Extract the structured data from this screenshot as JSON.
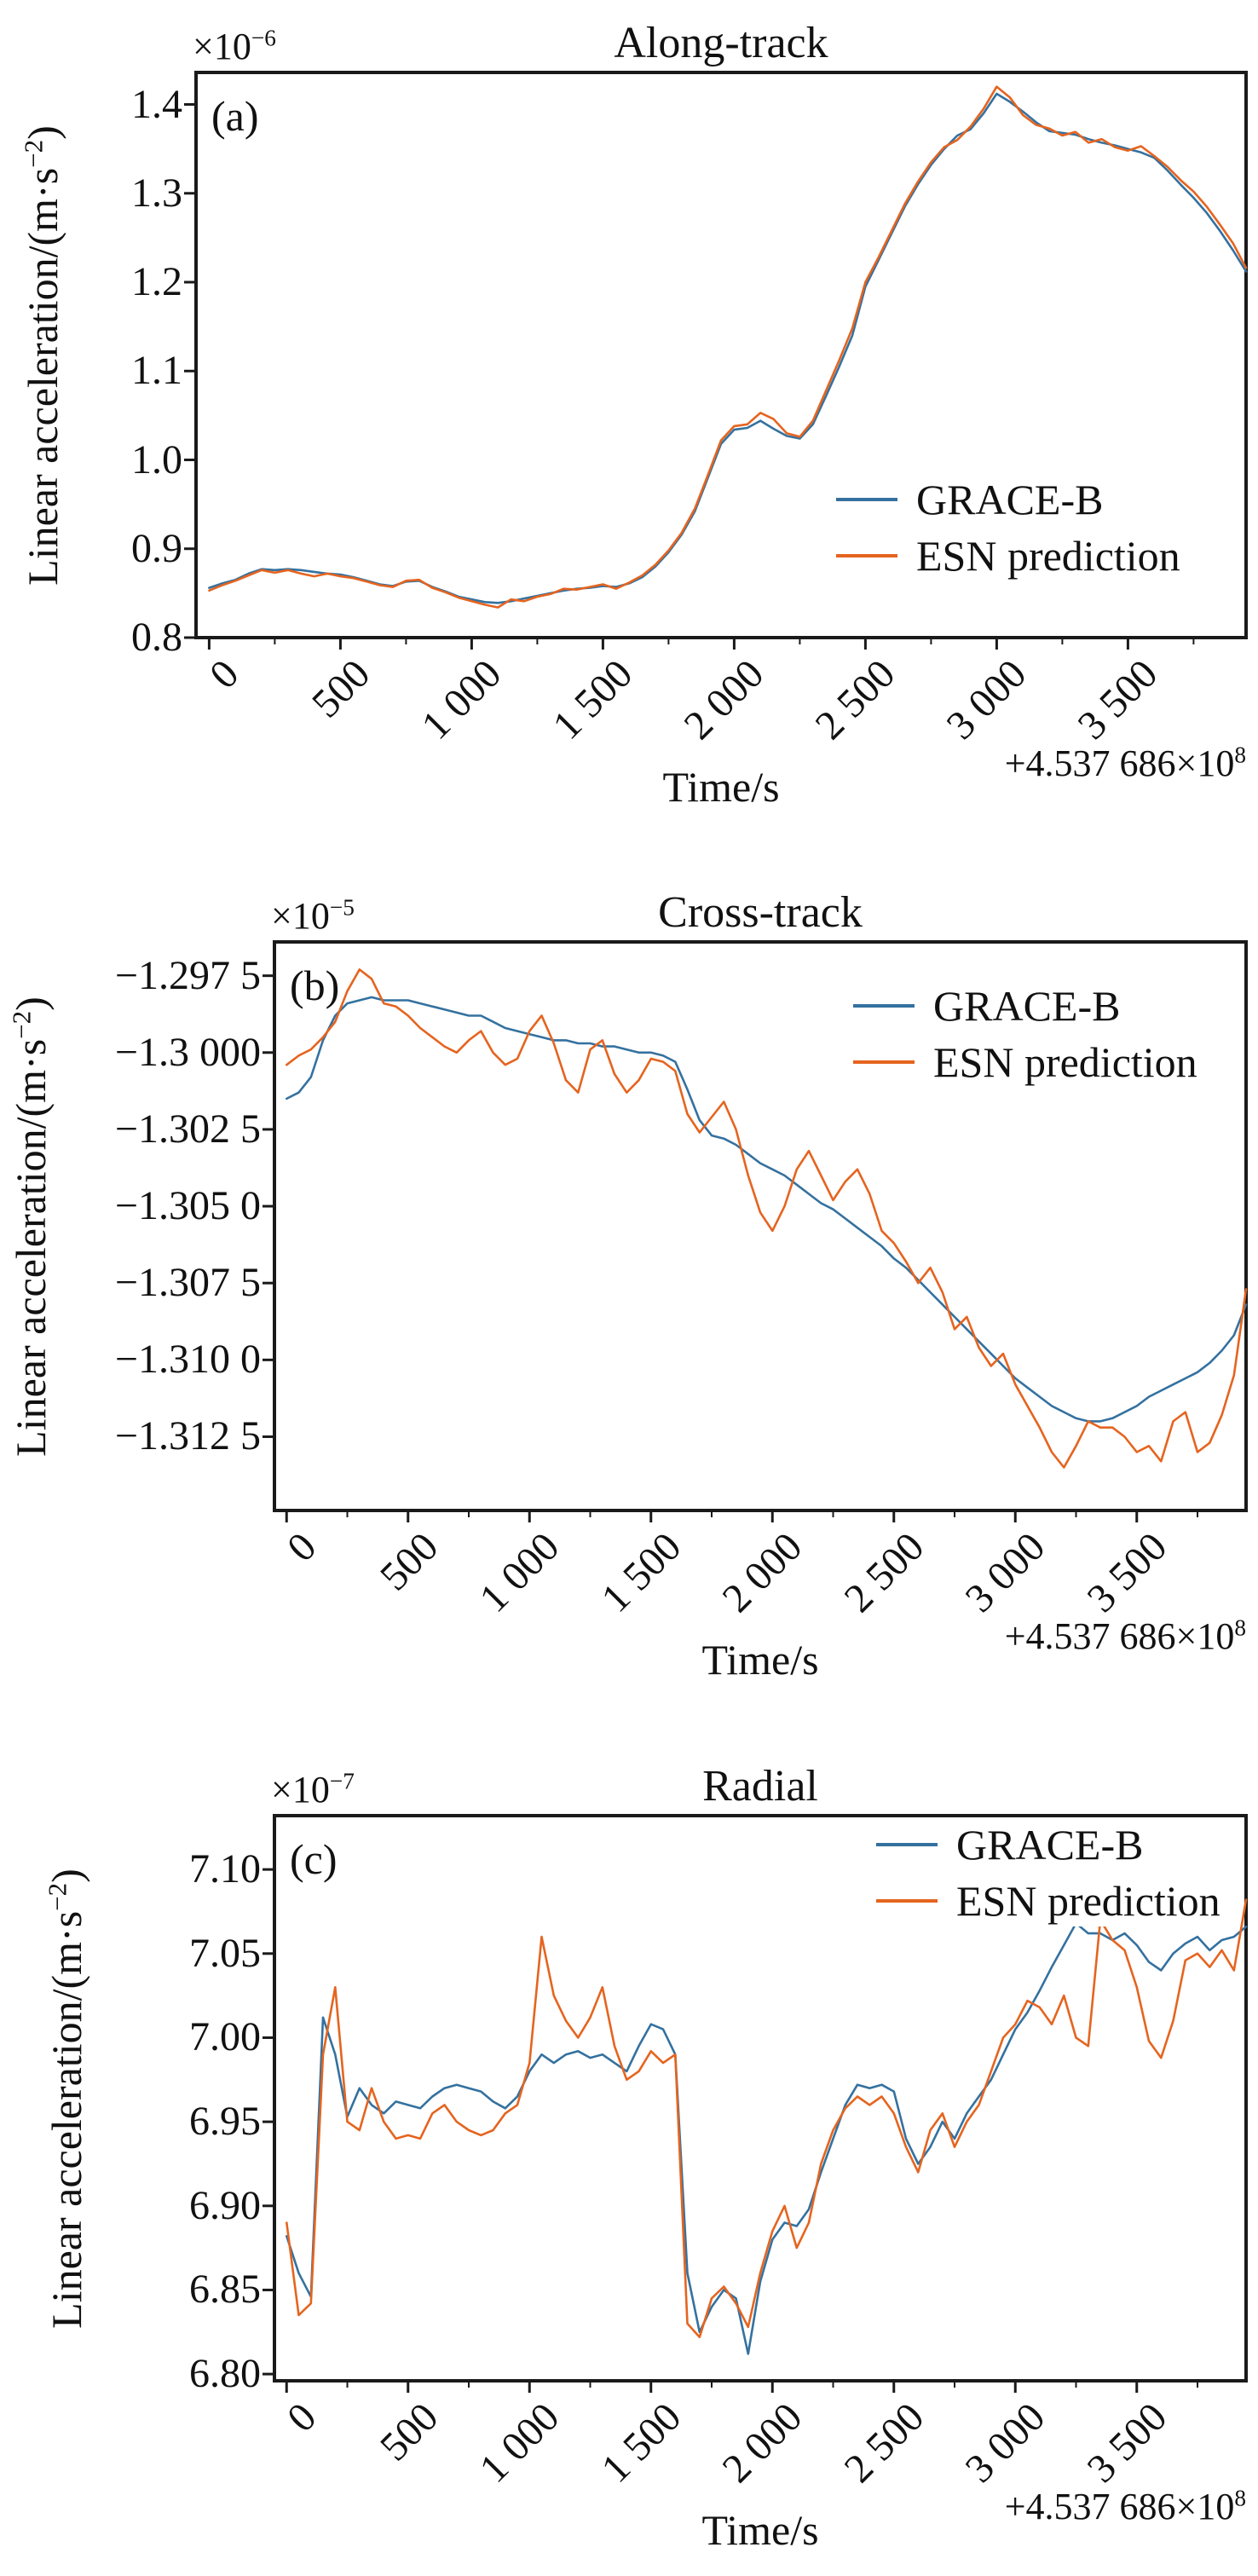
{
  "figure": {
    "background": "#ffffff",
    "axis_color": "#1a1a1a",
    "colors": {
      "grace": "#34719f",
      "esn": "#e5641f"
    }
  },
  "chart_data": [
    {
      "type": "line",
      "panel": "(a)",
      "title": "Along-track",
      "xlabel": "Time/s",
      "ylabel": {
        "pre": "Linear acceleration/(m·s",
        "sup": "−2",
        "post": ")"
      },
      "y_offset": {
        "base": "×10",
        "sup": "−6"
      },
      "x_offset": {
        "base": "+4.537 686×10",
        "sup": "8"
      },
      "xlim": [
        -50,
        3950
      ],
      "ylim": [
        0.8,
        1.436
      ],
      "xticks": {
        "values": [
          0,
          500,
          1000,
          1500,
          2000,
          2500,
          3000,
          3500
        ],
        "labels": [
          "0",
          "500",
          "1 000",
          "1 500",
          "2 000",
          "2 500",
          "3 000",
          "3 500"
        ]
      },
      "x_minor_ticks": [
        250,
        750,
        1250,
        1750,
        2250,
        2750,
        3250,
        3750
      ],
      "yticks": {
        "values": [
          1.4,
          1.3,
          1.2,
          1.1,
          1.0,
          0.9,
          0.8
        ],
        "labels": [
          "1.4",
          "1.3",
          "1.2",
          "1.1",
          "1.0",
          "0.9",
          "0.8"
        ]
      },
      "legend_position": "lower right",
      "x": [
        0,
        50,
        100,
        150,
        200,
        250,
        300,
        350,
        400,
        450,
        500,
        550,
        600,
        650,
        700,
        750,
        800,
        850,
        900,
        950,
        1000,
        1050,
        1100,
        1150,
        1200,
        1250,
        1300,
        1350,
        1400,
        1450,
        1500,
        1550,
        1600,
        1650,
        1700,
        1750,
        1800,
        1850,
        1900,
        1950,
        2000,
        2050,
        2100,
        2150,
        2200,
        2250,
        2300,
        2350,
        2400,
        2450,
        2500,
        2550,
        2600,
        2650,
        2700,
        2750,
        2800,
        2850,
        2900,
        2950,
        3000,
        3050,
        3100,
        3150,
        3200,
        3250,
        3300,
        3350,
        3400,
        3450,
        3500,
        3550,
        3600,
        3650,
        3700,
        3750,
        3800,
        3850,
        3900,
        3950
      ],
      "series": [
        {
          "name": "GRACE-B",
          "color_key": "grace",
          "values": [
            0.856,
            0.861,
            0.865,
            0.872,
            0.877,
            0.876,
            0.877,
            0.876,
            0.874,
            0.872,
            0.871,
            0.868,
            0.864,
            0.86,
            0.858,
            0.863,
            0.864,
            0.857,
            0.852,
            0.846,
            0.843,
            0.84,
            0.839,
            0.841,
            0.844,
            0.847,
            0.85,
            0.853,
            0.855,
            0.856,
            0.858,
            0.857,
            0.861,
            0.868,
            0.88,
            0.896,
            0.916,
            0.942,
            0.98,
            1.018,
            1.034,
            1.036,
            1.044,
            1.035,
            1.027,
            1.024,
            1.04,
            1.072,
            1.105,
            1.14,
            1.195,
            1.225,
            1.255,
            1.285,
            1.31,
            1.332,
            1.35,
            1.365,
            1.372,
            1.39,
            1.412,
            1.403,
            1.392,
            1.38,
            1.37,
            1.368,
            1.366,
            1.361,
            1.357,
            1.354,
            1.35,
            1.346,
            1.34,
            1.326,
            1.31,
            1.295,
            1.278,
            1.258,
            1.236,
            1.212
          ]
        },
        {
          "name": "ESN prediction",
          "color_key": "esn",
          "values": [
            0.853,
            0.859,
            0.864,
            0.87,
            0.876,
            0.873,
            0.876,
            0.872,
            0.869,
            0.872,
            0.869,
            0.867,
            0.863,
            0.859,
            0.857,
            0.864,
            0.865,
            0.856,
            0.851,
            0.845,
            0.841,
            0.837,
            0.834,
            0.843,
            0.841,
            0.846,
            0.849,
            0.855,
            0.854,
            0.857,
            0.86,
            0.855,
            0.862,
            0.87,
            0.882,
            0.898,
            0.918,
            0.945,
            0.983,
            1.022,
            1.038,
            1.04,
            1.053,
            1.046,
            1.03,
            1.026,
            1.044,
            1.078,
            1.112,
            1.148,
            1.2,
            1.228,
            1.258,
            1.288,
            1.313,
            1.335,
            1.352,
            1.36,
            1.375,
            1.395,
            1.42,
            1.408,
            1.388,
            1.377,
            1.373,
            1.365,
            1.369,
            1.357,
            1.361,
            1.352,
            1.348,
            1.353,
            1.342,
            1.33,
            1.315,
            1.302,
            1.285,
            1.265,
            1.244,
            1.216
          ]
        }
      ]
    },
    {
      "type": "line",
      "panel": "(b)",
      "title": "Cross-track",
      "xlabel": "Time/s",
      "ylabel": {
        "pre": "Linear acceleration/(m·s",
        "sup": "−2",
        "post": ")"
      },
      "y_offset": {
        "base": "×10",
        "sup": "−5"
      },
      "x_offset": {
        "base": "+4.537 686×10",
        "sup": "8"
      },
      "xlim": [
        -50,
        3950
      ],
      "ylim": [
        -1.3149,
        -1.2964
      ],
      "xticks": {
        "values": [
          0,
          500,
          1000,
          1500,
          2000,
          2500,
          3000,
          3500
        ],
        "labels": [
          "0",
          "500",
          "1 000",
          "1 500",
          "2 000",
          "2 500",
          "3 000",
          "3 500"
        ]
      },
      "x_minor_ticks": [
        250,
        750,
        1250,
        1750,
        2250,
        2750,
        3250,
        3750
      ],
      "yticks": {
        "values": [
          -1.2975,
          -1.3,
          -1.3025,
          -1.305,
          -1.3075,
          -1.31,
          -1.3125
        ],
        "labels": [
          "−1.297 5",
          "−1.3 000",
          "−1.302 5",
          "−1.305 0",
          "−1.307 5",
          "−1.310 0",
          "−1.312 5"
        ]
      },
      "legend_position": "upper right",
      "x": [
        0,
        50,
        100,
        150,
        200,
        250,
        300,
        350,
        400,
        450,
        500,
        550,
        600,
        650,
        700,
        750,
        800,
        850,
        900,
        950,
        1000,
        1050,
        1100,
        1150,
        1200,
        1250,
        1300,
        1350,
        1400,
        1450,
        1500,
        1550,
        1600,
        1650,
        1700,
        1750,
        1800,
        1850,
        1900,
        1950,
        2000,
        2050,
        2100,
        2150,
        2200,
        2250,
        2300,
        2350,
        2400,
        2450,
        2500,
        2550,
        2600,
        2650,
        2700,
        2750,
        2800,
        2850,
        2900,
        2950,
        3000,
        3050,
        3100,
        3150,
        3200,
        3250,
        3300,
        3350,
        3400,
        3450,
        3500,
        3550,
        3600,
        3650,
        3700,
        3750,
        3800,
        3850,
        3900,
        3950
      ],
      "series": [
        {
          "name": "GRACE-B",
          "color_key": "grace",
          "values": [
            -1.3015,
            -1.3013,
            -1.3008,
            -1.2996,
            -1.2988,
            -1.2984,
            -1.2983,
            -1.2982,
            -1.2983,
            -1.2983,
            -1.2983,
            -1.2984,
            -1.2985,
            -1.2986,
            -1.2987,
            -1.2988,
            -1.2988,
            -1.299,
            -1.2992,
            -1.2993,
            -1.2994,
            -1.2995,
            -1.2996,
            -1.2996,
            -1.2997,
            -1.2997,
            -1.2998,
            -1.2998,
            -1.2999,
            -1.3,
            -1.3,
            -1.3001,
            -1.3003,
            -1.3012,
            -1.3022,
            -1.3027,
            -1.3028,
            -1.303,
            -1.3033,
            -1.3036,
            -1.3038,
            -1.304,
            -1.3043,
            -1.3046,
            -1.3049,
            -1.3051,
            -1.3054,
            -1.3057,
            -1.306,
            -1.3063,
            -1.3067,
            -1.307,
            -1.3074,
            -1.3078,
            -1.3082,
            -1.3086,
            -1.309,
            -1.3094,
            -1.3098,
            -1.3102,
            -1.3106,
            -1.3109,
            -1.3112,
            -1.3115,
            -1.3117,
            -1.3119,
            -1.312,
            -1.312,
            -1.3119,
            -1.3117,
            -1.3115,
            -1.3112,
            -1.311,
            -1.3108,
            -1.3106,
            -1.3104,
            -1.3101,
            -1.3097,
            -1.3092,
            -1.3082
          ]
        },
        {
          "name": "ESN prediction",
          "color_key": "esn",
          "values": [
            -1.3004,
            -1.3001,
            -1.2999,
            -1.2995,
            -1.299,
            -1.298,
            -1.2973,
            -1.2976,
            -1.2984,
            -1.2985,
            -1.2988,
            -1.2992,
            -1.2995,
            -1.2998,
            -1.3,
            -1.2996,
            -1.2993,
            -1.3,
            -1.3004,
            -1.3002,
            -1.2993,
            -1.2988,
            -1.2997,
            -1.3009,
            -1.3013,
            -1.2999,
            -1.2996,
            -1.3007,
            -1.3013,
            -1.3009,
            -1.3002,
            -1.3003,
            -1.3006,
            -1.302,
            -1.3026,
            -1.3021,
            -1.3016,
            -1.3025,
            -1.304,
            -1.3052,
            -1.3058,
            -1.305,
            -1.3038,
            -1.3032,
            -1.304,
            -1.3048,
            -1.3042,
            -1.3038,
            -1.3046,
            -1.3058,
            -1.3062,
            -1.3068,
            -1.3075,
            -1.307,
            -1.3078,
            -1.309,
            -1.3086,
            -1.3096,
            -1.3102,
            -1.3098,
            -1.3108,
            -1.3115,
            -1.3122,
            -1.313,
            -1.3135,
            -1.3128,
            -1.312,
            -1.3122,
            -1.3122,
            -1.3125,
            -1.313,
            -1.3128,
            -1.3133,
            -1.312,
            -1.3117,
            -1.313,
            -1.3127,
            -1.3118,
            -1.3105,
            -1.3077
          ]
        }
      ]
    },
    {
      "type": "line",
      "panel": "(c)",
      "title": "Radial",
      "xlabel": "Time/s",
      "ylabel": {
        "pre": "Linear acceleration/(m·s",
        "sup": "−2",
        "post": ")"
      },
      "y_offset": {
        "base": "×10",
        "sup": "−7"
      },
      "x_offset": {
        "base": "+4.537 686×10",
        "sup": "8"
      },
      "xlim": [
        -50,
        3950
      ],
      "ylim": [
        6.796,
        7.132
      ],
      "xticks": {
        "values": [
          0,
          500,
          1000,
          1500,
          2000,
          2500,
          3000,
          3500
        ],
        "labels": [
          "0",
          "500",
          "1 000",
          "1 500",
          "2 000",
          "2 500",
          "3 000",
          "3 500"
        ]
      },
      "x_minor_ticks": [
        250,
        750,
        1250,
        1750,
        2250,
        2750,
        3250,
        3750
      ],
      "yticks": {
        "values": [
          7.1,
          7.05,
          7.0,
          6.95,
          6.9,
          6.85,
          6.8
        ],
        "labels": [
          "7.10",
          "7.05",
          "7.00",
          "6.95",
          "6.90",
          "6.85",
          "6.80"
        ]
      },
      "legend_position": "upper right",
      "x": [
        0,
        50,
        100,
        150,
        200,
        250,
        300,
        350,
        400,
        450,
        500,
        550,
        600,
        650,
        700,
        750,
        800,
        850,
        900,
        950,
        1000,
        1050,
        1100,
        1150,
        1200,
        1250,
        1300,
        1350,
        1400,
        1450,
        1500,
        1550,
        1600,
        1650,
        1700,
        1750,
        1800,
        1850,
        1900,
        1950,
        2000,
        2050,
        2100,
        2150,
        2200,
        2250,
        2300,
        2350,
        2400,
        2450,
        2500,
        2550,
        2600,
        2650,
        2700,
        2750,
        2800,
        2850,
        2900,
        2950,
        3000,
        3050,
        3100,
        3150,
        3200,
        3250,
        3300,
        3350,
        3400,
        3450,
        3500,
        3550,
        3600,
        3650,
        3700,
        3750,
        3800,
        3850,
        3900,
        3950
      ],
      "series": [
        {
          "name": "GRACE-B",
          "color_key": "grace",
          "values": [
            6.882,
            6.86,
            6.846,
            7.012,
            6.99,
            6.953,
            6.97,
            6.96,
            6.955,
            6.962,
            6.96,
            6.958,
            6.965,
            6.97,
            6.972,
            6.97,
            6.968,
            6.962,
            6.958,
            6.965,
            6.98,
            6.99,
            6.985,
            6.99,
            6.992,
            6.988,
            6.99,
            6.985,
            6.98,
            6.995,
            7.008,
            7.005,
            6.99,
            6.86,
            6.825,
            6.84,
            6.85,
            6.845,
            6.812,
            6.855,
            6.88,
            6.89,
            6.888,
            6.898,
            6.92,
            6.94,
            6.96,
            6.972,
            6.97,
            6.972,
            6.968,
            6.94,
            6.925,
            6.935,
            6.95,
            6.94,
            6.955,
            6.965,
            6.975,
            6.99,
            7.005,
            7.015,
            7.028,
            7.042,
            7.055,
            7.068,
            7.062,
            7.062,
            7.058,
            7.062,
            7.055,
            7.045,
            7.04,
            7.05,
            7.056,
            7.06,
            7.052,
            7.058,
            7.06,
            7.066
          ]
        },
        {
          "name": "ESN prediction",
          "color_key": "esn",
          "values": [
            6.89,
            6.835,
            6.842,
            6.99,
            7.03,
            6.95,
            6.945,
            6.97,
            6.95,
            6.94,
            6.942,
            6.94,
            6.955,
            6.96,
            6.95,
            6.945,
            6.942,
            6.945,
            6.955,
            6.96,
            6.985,
            7.06,
            7.025,
            7.01,
            7.0,
            7.012,
            7.03,
            6.995,
            6.975,
            6.98,
            6.992,
            6.985,
            6.99,
            6.83,
            6.822,
            6.845,
            6.852,
            6.842,
            6.828,
            6.86,
            6.885,
            6.9,
            6.875,
            6.89,
            6.925,
            6.945,
            6.958,
            6.965,
            6.96,
            6.965,
            6.955,
            6.935,
            6.92,
            6.945,
            6.955,
            6.935,
            6.95,
            6.96,
            6.98,
            7.0,
            7.008,
            7.022,
            7.018,
            7.008,
            7.025,
            7.0,
            6.995,
            7.07,
            7.058,
            7.052,
            7.03,
            6.998,
            6.988,
            7.01,
            7.046,
            7.05,
            7.042,
            7.052,
            7.04,
            7.082
          ]
        }
      ]
    }
  ]
}
